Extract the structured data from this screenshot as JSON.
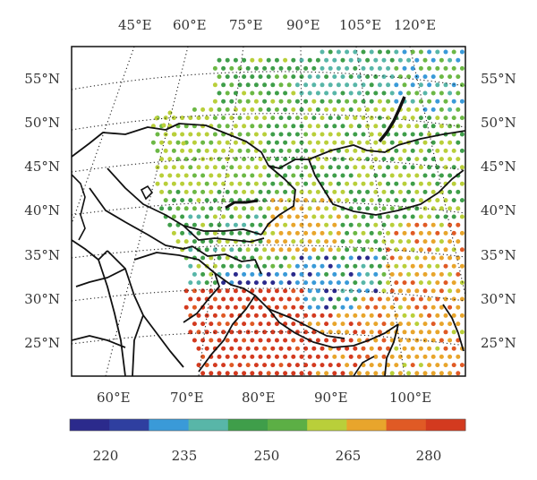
{
  "top_lon_labels": [
    "45°E",
    "60°E",
    "75°E",
    "90°E",
    "105°E",
    "120°E"
  ],
  "lat_labels": [
    "55°N",
    "50°N",
    "45°N",
    "40°N",
    "35°N",
    "30°N",
    "25°N"
  ],
  "bottom_lon_labels": [
    "60°E",
    "70°E",
    "80°E",
    "90°E",
    "100°E"
  ],
  "colorbar": {
    "colors": [
      "#2b2a8c",
      "#2f3fa0",
      "#3a9ad8",
      "#58b6a8",
      "#3f9e4a",
      "#5caf45",
      "#b9cf3a",
      "#e8a52c",
      "#e05a25",
      "#d33a1f"
    ],
    "tick_labels": [
      "220",
      "235",
      "250",
      "265",
      "280"
    ]
  },
  "palette": {
    "deep_blue": "#2b2a8c",
    "blue": "#3a9ad8",
    "teal": "#58b6a8",
    "green": "#3f9e4a",
    "light_green": "#6cb845",
    "yellow_green": "#b9cf3a",
    "orange": "#e8a52c",
    "red_orange": "#e05a25",
    "red": "#d33a1f"
  }
}
